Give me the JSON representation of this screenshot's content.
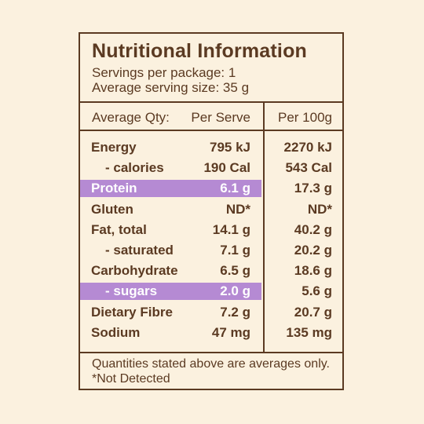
{
  "title": "Nutritional Information",
  "servings_per_package": "Servings per package: 1",
  "serving_size": "Average serving size: 35 g",
  "headers": {
    "qty": "Average Qty:",
    "per_serve": "Per Serve",
    "per_100g": "Per 100g"
  },
  "rows": [
    {
      "label": "Energy",
      "per_serve": "795 kJ",
      "per_100g": "2270 kJ",
      "indent": false,
      "highlight": false
    },
    {
      "label": "- calories",
      "per_serve": "190 Cal",
      "per_100g": "543 Cal",
      "indent": true,
      "highlight": false
    },
    {
      "label": "Protein",
      "per_serve": "6.1 g",
      "per_100g": "17.3 g",
      "indent": false,
      "highlight": true
    },
    {
      "label": "Gluten",
      "per_serve": "ND*",
      "per_100g": "ND*",
      "indent": false,
      "highlight": false
    },
    {
      "label": "Fat, total",
      "per_serve": "14.1 g",
      "per_100g": "40.2 g",
      "indent": false,
      "highlight": false
    },
    {
      "label": "- saturated",
      "per_serve": "7.1 g",
      "per_100g": "20.2 g",
      "indent": true,
      "highlight": false
    },
    {
      "label": "Carbohydrate",
      "per_serve": "6.5 g",
      "per_100g": "18.6 g",
      "indent": false,
      "highlight": false
    },
    {
      "label": "- sugars",
      "per_serve": "2.0 g",
      "per_100g": "5.6 g",
      "indent": true,
      "highlight": true
    },
    {
      "label": "Dietary Fibre",
      "per_serve": "7.2 g",
      "per_100g": "20.7 g",
      "indent": false,
      "highlight": false
    },
    {
      "label": "Sodium",
      "per_serve": "47 mg",
      "per_100g": "135 mg",
      "indent": false,
      "highlight": false
    }
  ],
  "footnote_1": "Quantities stated above are averages only.",
  "footnote_2": "*Not Detected",
  "colors": {
    "text": "#5b3a22",
    "background": "#fbf1df",
    "highlight": "#b58ad3"
  }
}
